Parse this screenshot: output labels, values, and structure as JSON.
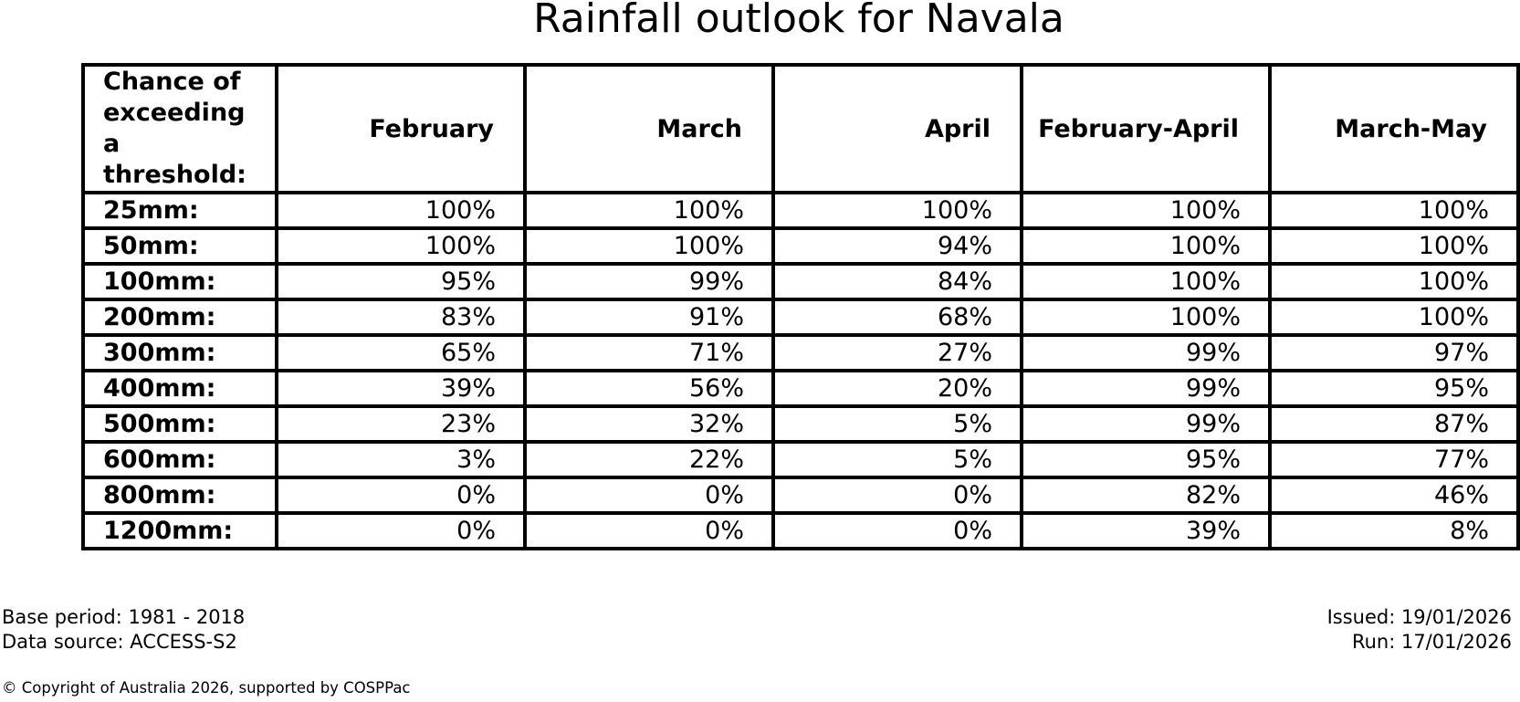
{
  "title": "Rainfall outlook for Navala",
  "table": {
    "corner_label": "Chance of\nexceeding\na threshold:",
    "columns": [
      "February",
      "March",
      "April",
      "February-April",
      "March-May"
    ],
    "rows": [
      {
        "label": "25mm:",
        "values": [
          "100%",
          "100%",
          "100%",
          "100%",
          "100%"
        ]
      },
      {
        "label": "50mm:",
        "values": [
          "100%",
          "100%",
          "94%",
          "100%",
          "100%"
        ]
      },
      {
        "label": "100mm:",
        "values": [
          "95%",
          "99%",
          "84%",
          "100%",
          "100%"
        ]
      },
      {
        "label": "200mm:",
        "values": [
          "83%",
          "91%",
          "68%",
          "100%",
          "100%"
        ]
      },
      {
        "label": "300mm:",
        "values": [
          "65%",
          "71%",
          "27%",
          "99%",
          "97%"
        ]
      },
      {
        "label": "400mm:",
        "values": [
          "39%",
          "56%",
          "20%",
          "99%",
          "95%"
        ]
      },
      {
        "label": "500mm:",
        "values": [
          "23%",
          "32%",
          "5%",
          "99%",
          "87%"
        ]
      },
      {
        "label": "600mm:",
        "values": [
          "3%",
          "22%",
          "5%",
          "95%",
          "77%"
        ]
      },
      {
        "label": "800mm:",
        "values": [
          "0%",
          "0%",
          "0%",
          "82%",
          "46%"
        ]
      },
      {
        "label": "1200mm:",
        "values": [
          "0%",
          "0%",
          "0%",
          "39%",
          "8%"
        ]
      }
    ]
  },
  "footer": {
    "base_period": "Base period: 1981 - 2018",
    "data_source": "Data source: ACCESS-S2",
    "issued": "Issued: 19/01/2026",
    "run": "Run: 17/01/2026",
    "copyright": "© Copyright of Australia 2026, supported by COSPPac"
  },
  "colors": {
    "text": "#000000",
    "background": "#ffffff",
    "table_border": "#000000"
  },
  "chart_data": {
    "type": "table",
    "title": "Rainfall outlook for Navala",
    "row_header": "Chance of exceeding a threshold:",
    "thresholds_mm": [
      25,
      50,
      100,
      200,
      300,
      400,
      500,
      600,
      800,
      1200
    ],
    "categories": [
      "25mm",
      "50mm",
      "100mm",
      "200mm",
      "300mm",
      "400mm",
      "500mm",
      "600mm",
      "800mm",
      "1200mm"
    ],
    "series": [
      {
        "name": "February",
        "values_pct": [
          100,
          100,
          95,
          83,
          65,
          39,
          23,
          3,
          0,
          0
        ]
      },
      {
        "name": "March",
        "values_pct": [
          100,
          100,
          99,
          91,
          71,
          56,
          32,
          22,
          0,
          0
        ]
      },
      {
        "name": "April",
        "values_pct": [
          100,
          94,
          84,
          68,
          27,
          20,
          5,
          5,
          0,
          0
        ]
      },
      {
        "name": "February-April",
        "values_pct": [
          100,
          100,
          100,
          100,
          99,
          99,
          99,
          95,
          82,
          39
        ]
      },
      {
        "name": "March-May",
        "values_pct": [
          100,
          100,
          100,
          100,
          97,
          95,
          87,
          77,
          46,
          8
        ]
      }
    ],
    "units": "percent chance of exceeding threshold",
    "base_period": "1981 - 2018",
    "data_source": "ACCESS-S2",
    "issued": "19/01/2026",
    "run": "17/01/2026"
  }
}
